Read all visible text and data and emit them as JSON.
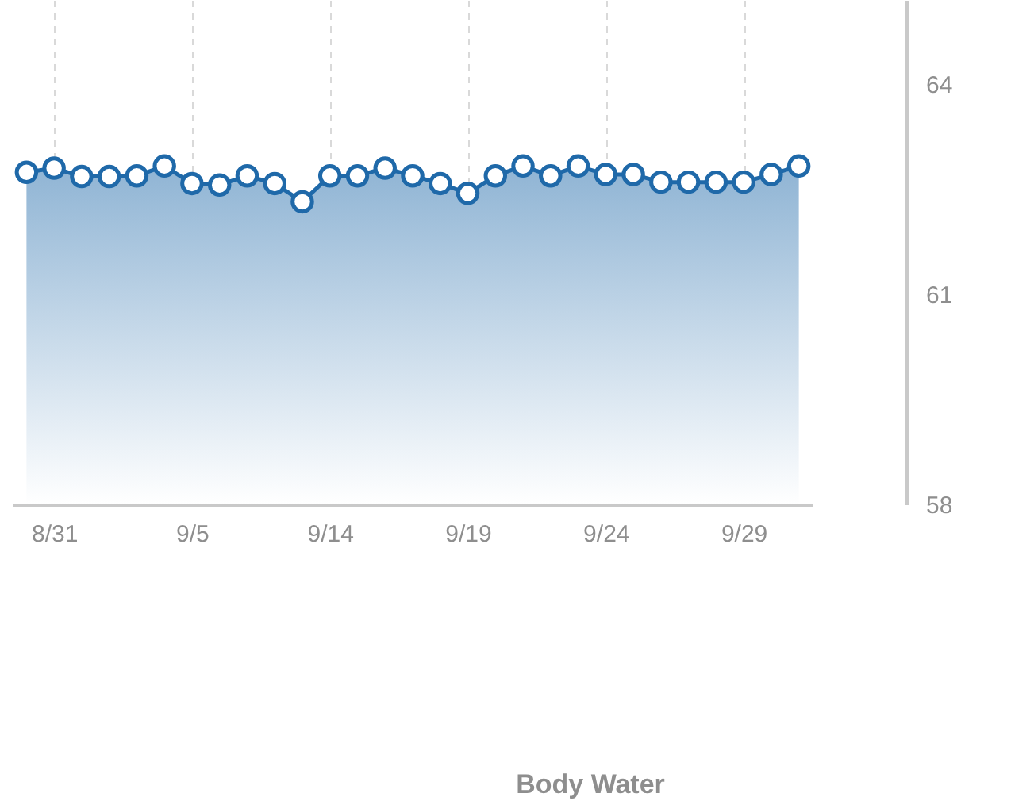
{
  "chart_data": {
    "type": "area",
    "title": "Body Water",
    "categories": [
      null,
      "8/31",
      null,
      null,
      null,
      null,
      "9/5",
      null,
      null,
      null,
      null,
      "9/14",
      null,
      null,
      null,
      null,
      "9/19",
      null,
      null,
      null,
      null,
      "9/24",
      null,
      null,
      null,
      null,
      "9/29",
      null,
      null
    ],
    "series": [
      {
        "color": "#1f69a9",
        "values": [
          62.74,
          62.8,
          62.68,
          62.68,
          62.69,
          62.83,
          62.58,
          62.56,
          62.69,
          62.58,
          62.32,
          62.69,
          62.69,
          62.8,
          62.69,
          62.58,
          62.44,
          62.69,
          62.83,
          62.69,
          62.83,
          62.71,
          62.71,
          62.6,
          62.6,
          62.6,
          62.6,
          62.71,
          62.83
        ]
      }
    ],
    "ylim": [
      58,
      65.2
    ],
    "yticks": [
      58,
      61,
      64
    ],
    "grid": "x",
    "marker": "circle"
  }
}
